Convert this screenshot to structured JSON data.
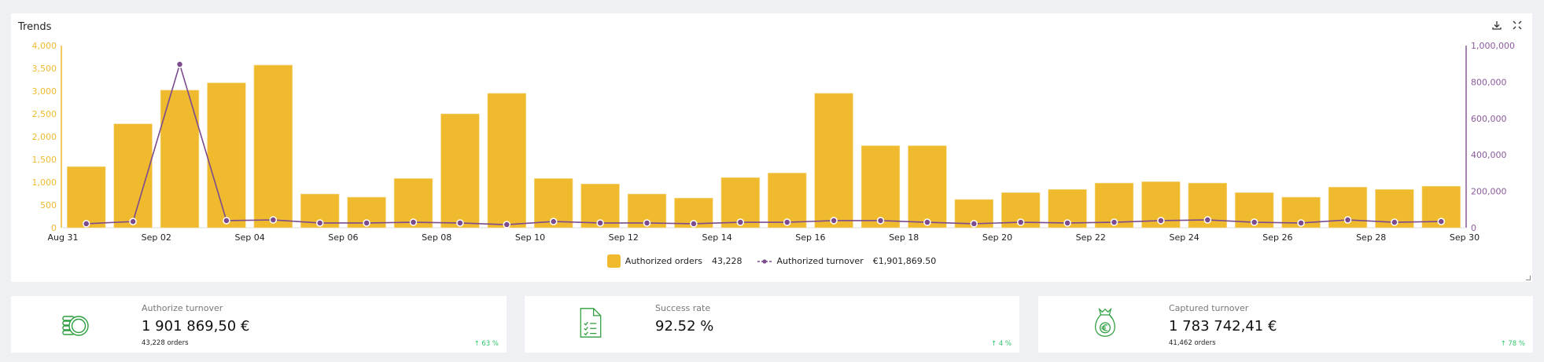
{
  "card": {
    "title": "Trends",
    "download_icon": "download-icon",
    "fullscreen_icon": "fullscreen-icon"
  },
  "legend": {
    "orders_label": "Authorized orders",
    "orders_total": "43,228",
    "turnover_label": "Authorized turnover",
    "turnover_total": "€1,901,869.50"
  },
  "colors": {
    "bar": "#f0ba2f",
    "line": "#7b4b8e",
    "left_axis": "#f0ba2f",
    "right_axis": "#8a5a9c",
    "positive": "#2ec36a",
    "icon_green": "#2e9e3e"
  },
  "chart_data": {
    "type": "bar",
    "title": "Trends",
    "xlabel": "",
    "ylabel": "",
    "categories": [
      "Aug 31",
      "Sep 01",
      "Sep 02",
      "Sep 03",
      "Sep 04",
      "Sep 05",
      "Sep 06",
      "Sep 07",
      "Sep 08",
      "Sep 09",
      "Sep 10",
      "Sep 11",
      "Sep 12",
      "Sep 13",
      "Sep 14",
      "Sep 15",
      "Sep 16",
      "Sep 17",
      "Sep 18",
      "Sep 19",
      "Sep 20",
      "Sep 21",
      "Sep 22",
      "Sep 23",
      "Sep 24",
      "Sep 25",
      "Sep 26",
      "Sep 27",
      "Sep 28",
      "Sep 29"
    ],
    "x_tick_labels": [
      "Aug 31",
      "Sep 02",
      "Sep 04",
      "Sep 06",
      "Sep 08",
      "Sep 10",
      "Sep 12",
      "Sep 14",
      "Sep 16",
      "Sep 18",
      "Sep 20",
      "Sep 22",
      "Sep 24",
      "Sep 26",
      "Sep 28",
      "Sep 30"
    ],
    "series": [
      {
        "name": "Authorized orders",
        "type": "bar",
        "axis": "left",
        "values": [
          1340,
          2280,
          3020,
          3180,
          3570,
          740,
          670,
          1080,
          2500,
          2950,
          1080,
          960,
          740,
          650,
          1100,
          1200,
          2950,
          1800,
          1800,
          620,
          770,
          840,
          980,
          1010,
          980,
          770,
          670,
          890,
          840,
          910
        ]
      },
      {
        "name": "Authorized turnover",
        "type": "line",
        "axis": "right",
        "values": [
          22000,
          34000,
          897000,
          39000,
          43000,
          26000,
          26000,
          30000,
          26000,
          17000,
          34000,
          26000,
          26000,
          22000,
          30000,
          30000,
          39000,
          39000,
          30000,
          22000,
          30000,
          26000,
          30000,
          39000,
          43000,
          30000,
          26000,
          43000,
          30000,
          34000
        ]
      }
    ],
    "y_left": {
      "range": [
        0,
        4000
      ],
      "ticks": [
        "0",
        "500",
        "1,000",
        "1,500",
        "2,000",
        "2,500",
        "3,000",
        "3,500",
        "4,000"
      ]
    },
    "y_right": {
      "range": [
        0,
        1000000
      ],
      "ticks": [
        "0",
        "200,000",
        "400,000",
        "600,000",
        "800,000",
        "1,000,000"
      ]
    },
    "grid": false,
    "legend_position": "bottom-center"
  },
  "kpis": [
    {
      "icon": "coins-icon",
      "label": "Authorize turnover",
      "value": "1 901 869,50 €",
      "sub": "43,228 orders",
      "trend": "↑ 63 %"
    },
    {
      "icon": "checklist-document-icon",
      "label": "Success rate",
      "value": "92.52 %",
      "sub": "",
      "trend": "↑ 4 %"
    },
    {
      "icon": "money-bag-euro-icon",
      "label": "Captured turnover",
      "value": "1 783 742,41 €",
      "sub": "41,462 orders",
      "trend": "↑ 78 %"
    }
  ]
}
